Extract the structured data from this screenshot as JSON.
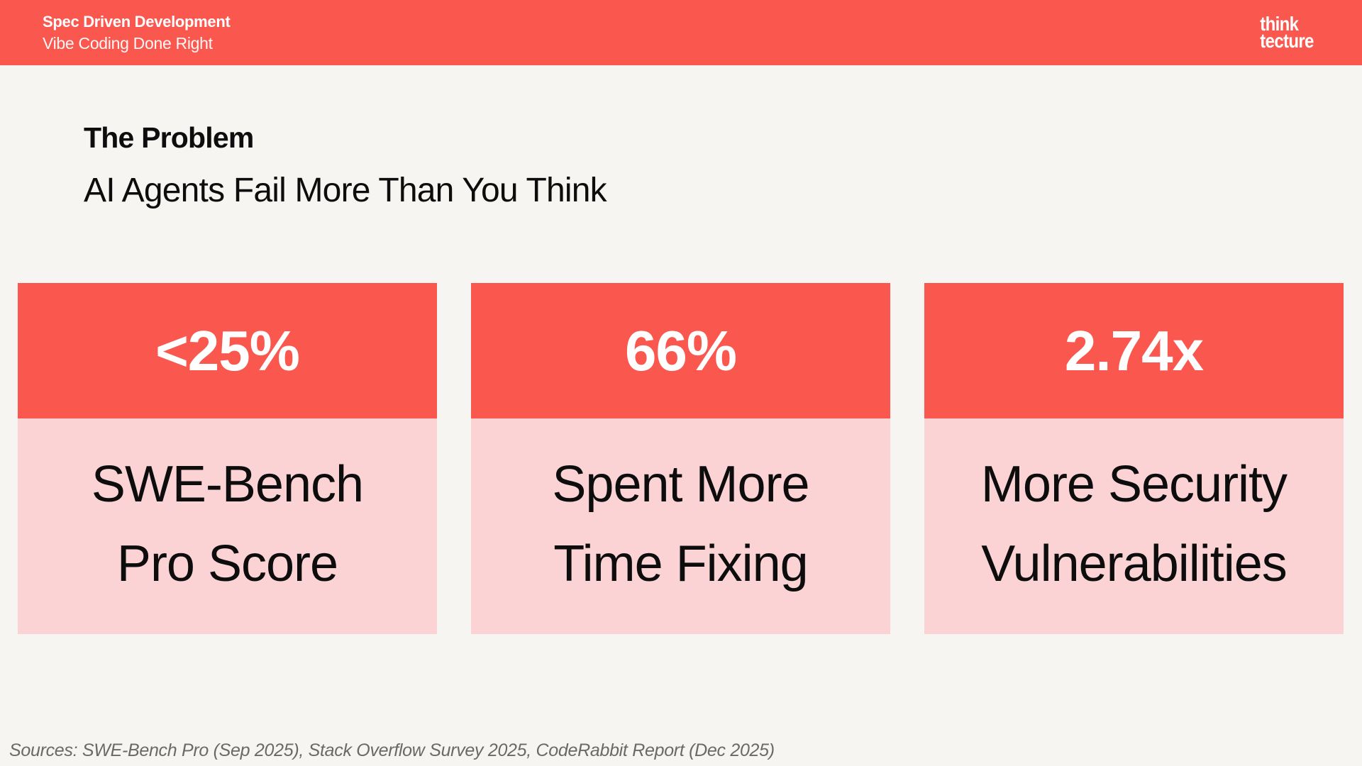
{
  "header": {
    "title": "Spec Driven Development",
    "subtitle": "Vibe Coding Done Right",
    "logo_line1": "think",
    "logo_line2": "tecture"
  },
  "slide": {
    "title": "The Problem",
    "subtitle": "AI Agents Fail More Than You Think"
  },
  "cards": [
    {
      "value": "<25%",
      "label_line1": "SWE-Bench",
      "label_line2": "Pro Score"
    },
    {
      "value": "66%",
      "label_line1": "Spent More",
      "label_line2": "Time Fixing"
    },
    {
      "value": "2.74x",
      "label_line1": "More Security",
      "label_line2": "Vulnerabilities"
    }
  ],
  "footer": {
    "sources": "Sources: SWE-Bench Pro (Sep 2025), Stack Overflow Survey 2025, CodeRabbit Report (Dec 2025)"
  },
  "colors": {
    "accent_red": "#FA574E",
    "light_pink": "#FBD3D4",
    "background": "#F7F5F2",
    "text_dark": "#0D0D0D",
    "footer_gray": "#6B6968"
  }
}
